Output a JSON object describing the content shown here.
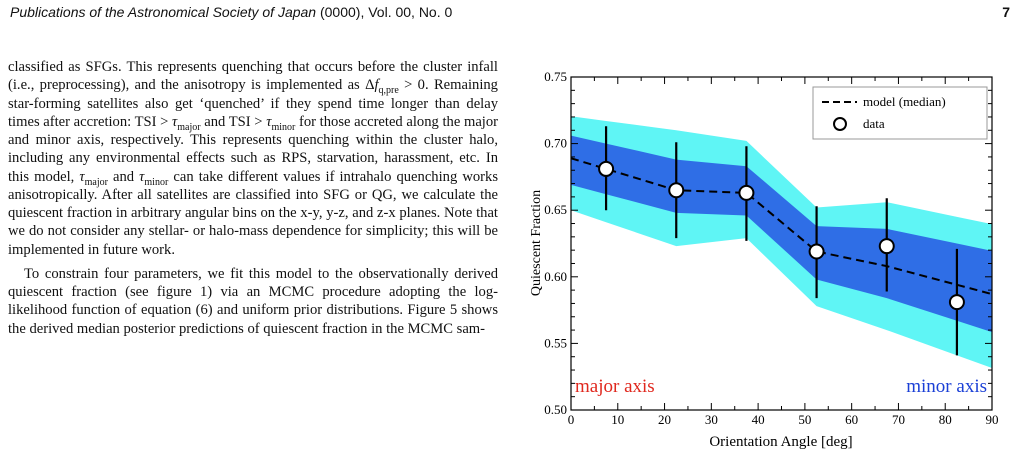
{
  "header": {
    "journal": "Publications of the Astronomical Society of Japan",
    "volume": "(0000), Vol. 00, No. 0",
    "page_number": "7"
  },
  "body": {
    "p1": {
      "t1": "classified as SFGs. This represents quenching that occurs before the cluster infall (i.e., preprocessing), and the anisotropy is implemented as ",
      "m1_delta": "Δ",
      "m1_f": "f",
      "m1_sub": "q,pre",
      "m1_rest": " > 0",
      "t2": ". Remaining star-forming satellites also get ‘quenched’ if they spend time longer than delay times after accretion: ",
      "m2_lhs": "TSI > ",
      "m2_tau": "τ",
      "m2_sub": "major",
      "t3": " and ",
      "m3_lhs": "TSI > ",
      "m3_tau": "τ",
      "m3_sub": "minor",
      "t4": " for those accreted along the major and minor axis, respectively. This represents quenching within the cluster halo, including any environmental effects such as RPS, starvation, harassment, etc. In this model, ",
      "m4_tau": "τ",
      "m4_sub": "major",
      "t5": " and ",
      "m5_tau": "τ",
      "m5_sub": "minor",
      "t6": " can take different values if intrahalo quenching works anisotropically. After all satellites are classified into SFG or QG, we calculate the quiescent fraction in arbitrary angular bins on the x-y, y-z, and z-x planes. Note that we do not consider any stellar- or halo-mass dependence for simplicity; this will be implemented in future work."
    },
    "p2": "To constrain four parameters, we fit this model to the observationally derived quiescent fraction (see figure 1) via an MCMC procedure adopting the log-likelihood function of equation (6) and uniform prior distributions. Figure 5 shows the derived median posterior predictions of quiescent fraction in the MCMC sam-"
  },
  "chart_data": {
    "type": "line",
    "xlabel": "Orientation Angle [deg]",
    "ylabel": "Quiescent Fraction",
    "xlim": [
      0,
      90
    ],
    "ylim": [
      0.5,
      0.75
    ],
    "xticks": [
      "0",
      "10",
      "20",
      "30",
      "40",
      "50",
      "60",
      "70",
      "80",
      "90"
    ],
    "yticks": [
      "0.50",
      "0.55",
      "0.60",
      "0.65",
      "0.70",
      "0.75"
    ],
    "grid": false,
    "legend_position": "top-right",
    "legend": {
      "model": "model (median)",
      "data": "data"
    },
    "annotations": {
      "left": "major axis",
      "right": "minor axis"
    },
    "colors": {
      "outer_band": "#5ff5f5",
      "inner_band": "#2f6ee6",
      "left_label": "#e0281e",
      "right_label": "#1a3fd6"
    },
    "model": {
      "x": [
        7.5,
        22.5,
        37.5,
        52.5,
        67.5,
        82.5
      ],
      "median": [
        0.681,
        0.665,
        0.663,
        0.619,
        0.608,
        0.594
      ],
      "inner_low": [
        0.662,
        0.648,
        0.646,
        0.598,
        0.584,
        0.567
      ],
      "inner_high": [
        0.7,
        0.688,
        0.683,
        0.638,
        0.636,
        0.625
      ],
      "outer_low": [
        0.641,
        0.623,
        0.629,
        0.578,
        0.56,
        0.541
      ],
      "outer_high": [
        0.717,
        0.71,
        0.702,
        0.652,
        0.656,
        0.645
      ]
    },
    "data": {
      "x": [
        7.5,
        22.5,
        37.5,
        52.5,
        67.5,
        82.5
      ],
      "y": [
        0.681,
        0.665,
        0.663,
        0.619,
        0.623,
        0.581
      ],
      "err_low": [
        0.65,
        0.629,
        0.627,
        0.584,
        0.589,
        0.541
      ],
      "err_high": [
        0.713,
        0.701,
        0.698,
        0.653,
        0.659,
        0.621
      ]
    }
  }
}
